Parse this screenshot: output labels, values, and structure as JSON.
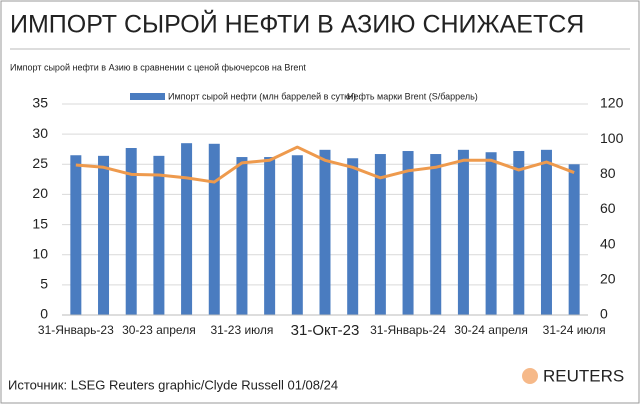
{
  "chart_data": {
    "type": "bar-line",
    "title": "ИМПОРТ СЫРОЙ НЕФТИ В АЗИЮ СНИЖАЕТСЯ",
    "subtitle": "Импорт сырой нефти в Азию в сравнении с ценой фьючерсов на Brent",
    "source": "Источник: LSEG Reuters graphic/Clyde Russell 01/08/24",
    "logo": "REUTERS",
    "categories": [
      "31-Январь-23",
      null,
      null,
      "30-23 апреля",
      null,
      null,
      "31-23 июля",
      null,
      null,
      "31-Окт-23",
      null,
      null,
      "31-Январь-24",
      null,
      null,
      "30-24 апреля",
      null,
      null,
      "31-24 июля"
    ],
    "series": [
      {
        "name": "Импорт сырой нефти (млн баррелей в сутки)",
        "color": "#4a7cc0",
        "type": "bar",
        "values": [
          26.5,
          26.4,
          27.7,
          26.4,
          28.5,
          28.4,
          26.2,
          26.2,
          26.5,
          27.4,
          26.0,
          26.7,
          27.2,
          26.7,
          27.4,
          27.0,
          27.2,
          27.4,
          25.0
        ]
      },
      {
        "name": "Нефть марки Brent (S/баррель)",
        "color": "#ee9a4d",
        "type": "line",
        "axis": "y2",
        "values": [
          85.3,
          84,
          80,
          79.6,
          78,
          75.6,
          86.5,
          88,
          95.5,
          88,
          84,
          78,
          82,
          84,
          88,
          88,
          82.5,
          87,
          81
        ]
      }
    ],
    "ylim": [
      0,
      35
    ],
    "yticks": [
      0,
      5,
      10,
      15,
      20,
      25,
      30,
      35
    ],
    "y2lim": [
      0,
      120
    ],
    "y2ticks": [
      0,
      20,
      40,
      60,
      80,
      100,
      120
    ],
    "grid": true
  }
}
